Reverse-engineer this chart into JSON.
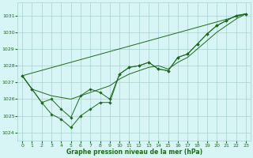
{
  "hours": [
    0,
    1,
    2,
    3,
    4,
    5,
    6,
    7,
    8,
    9,
    10,
    11,
    12,
    13,
    14,
    15,
    16,
    17,
    18,
    19,
    20,
    21,
    22,
    23
  ],
  "line_main": [
    1027.4,
    1026.6,
    1025.8,
    1025.1,
    1024.8,
    1024.3,
    1025.0,
    1025.4,
    1025.8,
    1025.8,
    1027.5,
    1027.9,
    1028.0,
    1028.2,
    1027.8,
    1027.7,
    1028.5,
    1028.7,
    1029.3,
    1029.9,
    1030.4,
    1030.7,
    1031.0,
    1031.1
  ],
  "line_smooth": [
    1027.4,
    1026.6,
    1026.4,
    1026.2,
    1026.1,
    1026.0,
    1026.2,
    1026.4,
    1026.6,
    1026.8,
    1027.2,
    1027.5,
    1027.7,
    1027.9,
    1028.0,
    1027.8,
    1028.2,
    1028.5,
    1029.0,
    1029.5,
    1030.0,
    1030.4,
    1030.8,
    1031.1
  ],
  "line_alt": [
    1027.4,
    1026.6,
    1025.8,
    1026.0,
    1025.4,
    1024.9,
    1026.2,
    1026.6,
    1026.4,
    1026.0,
    1027.5,
    1027.9,
    1028.0,
    1028.2,
    1027.8,
    1027.7,
    1028.5,
    1028.7,
    1029.3,
    1029.9,
    1030.4,
    1030.7,
    1031.0,
    1031.1
  ],
  "trend_x": [
    0,
    23
  ],
  "trend_y": [
    1027.4,
    1031.1
  ],
  "line_color": "#1a6b1a",
  "bg_color": "#d8f5f5",
  "grid_color": "#a8d0d0",
  "text_color": "#1a6b1a",
  "xlabel": "Graphe pression niveau de la mer (hPa)",
  "ylim": [
    1023.5,
    1031.8
  ],
  "yticks": [
    1024,
    1025,
    1026,
    1027,
    1028,
    1029,
    1030,
    1031
  ],
  "xticks": [
    0,
    1,
    2,
    3,
    4,
    5,
    6,
    7,
    8,
    9,
    10,
    11,
    12,
    13,
    14,
    15,
    16,
    17,
    18,
    19,
    20,
    21,
    22,
    23
  ]
}
